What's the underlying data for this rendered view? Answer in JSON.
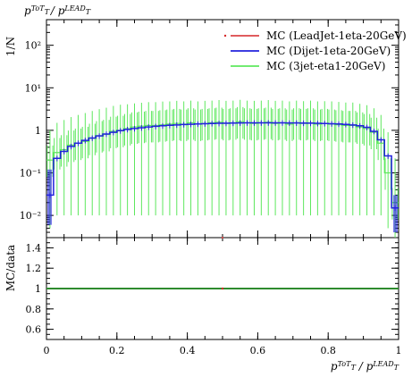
{
  "chart_data": {
    "title": "p_T^ToT / p_T^LEAD",
    "xlabel": "p_T^ToT / p_T^LEAD",
    "ylabel_main": "1/N",
    "ylabel_ratio": "MC/data",
    "xlim": [
      0,
      1
    ],
    "x_ticks": [
      "0",
      "0.2",
      "0.4",
      "0.6",
      "0.8",
      "1"
    ],
    "x_tick_values": [
      0,
      0.2,
      0.4,
      0.6,
      0.8,
      1.0
    ],
    "main_panel": {
      "type": "line",
      "y_scale": "log",
      "ylim": [
        0.003,
        400
      ],
      "y_ticks": [
        {
          "value": 100,
          "label": "10²"
        },
        {
          "value": 10,
          "label": "10¹"
        },
        {
          "value": 1,
          "label": "1"
        },
        {
          "value": 0.1,
          "label": "10⁻¹"
        },
        {
          "value": 0.01,
          "label": "10⁻²"
        }
      ],
      "series": [
        {
          "name": "MC (LeadJet-1eta-20GeV)",
          "color": "#d62728",
          "style": "marker",
          "x": [
            0.5
          ],
          "y": [
            0.0
          ]
        },
        {
          "name": "MC (Dijet-1eta-20GeV)",
          "color": "#2222dd",
          "style": "histogram",
          "x": [
            0.01,
            0.03,
            0.05,
            0.07,
            0.09,
            0.11,
            0.13,
            0.15,
            0.17,
            0.19,
            0.21,
            0.23,
            0.25,
            0.27,
            0.29,
            0.31,
            0.33,
            0.35,
            0.37,
            0.39,
            0.41,
            0.43,
            0.45,
            0.47,
            0.49,
            0.51,
            0.53,
            0.55,
            0.57,
            0.59,
            0.61,
            0.63,
            0.65,
            0.67,
            0.69,
            0.71,
            0.73,
            0.75,
            0.77,
            0.79,
            0.81,
            0.83,
            0.85,
            0.87,
            0.89,
            0.91,
            0.93,
            0.95,
            0.97,
            0.99
          ],
          "y": [
            0.03,
            0.22,
            0.32,
            0.42,
            0.5,
            0.58,
            0.66,
            0.74,
            0.82,
            0.9,
            0.98,
            1.05,
            1.1,
            1.15,
            1.2,
            1.24,
            1.28,
            1.31,
            1.34,
            1.37,
            1.39,
            1.41,
            1.43,
            1.45,
            1.46,
            1.47,
            1.48,
            1.49,
            1.5,
            1.5,
            1.5,
            1.5,
            1.5,
            1.5,
            1.49,
            1.49,
            1.48,
            1.47,
            1.46,
            1.45,
            1.43,
            1.41,
            1.38,
            1.34,
            1.28,
            1.18,
            0.95,
            0.6,
            0.25,
            0.015
          ]
        },
        {
          "name": "MC (3jet-eta1-20GeV)",
          "color": "#5ee85e",
          "style": "histogram",
          "x": [
            0.01,
            0.03,
            0.05,
            0.07,
            0.09,
            0.11,
            0.13,
            0.15,
            0.17,
            0.19,
            0.21,
            0.23,
            0.25,
            0.27,
            0.29,
            0.31,
            0.33,
            0.35,
            0.37,
            0.39,
            0.41,
            0.43,
            0.45,
            0.47,
            0.49,
            0.51,
            0.53,
            0.55,
            0.57,
            0.59,
            0.61,
            0.63,
            0.65,
            0.67,
            0.69,
            0.71,
            0.73,
            0.75,
            0.77,
            0.79,
            0.81,
            0.83,
            0.85,
            0.87,
            0.89,
            0.91,
            0.93,
            0.95,
            0.97,
            0.99
          ],
          "y": [
            0.2,
            0.3,
            0.35,
            0.45,
            0.5,
            0.55,
            0.65,
            0.75,
            0.8,
            0.95,
            1.0,
            1.1,
            1.2,
            1.25,
            1.3,
            1.3,
            1.35,
            1.4,
            1.45,
            1.4,
            1.5,
            1.4,
            1.45,
            1.5,
            1.55,
            1.45,
            1.5,
            1.6,
            1.5,
            1.45,
            1.5,
            1.55,
            1.45,
            1.5,
            1.4,
            1.5,
            1.45,
            1.5,
            1.4,
            1.45,
            1.4,
            1.35,
            1.3,
            1.3,
            1.2,
            1.1,
            0.9,
            0.5,
            0.1,
            0.02
          ],
          "y_err_low": [
            0.195,
            0.29,
            0.34,
            0.44,
            0.49,
            0.54,
            0.64,
            0.74,
            0.79,
            0.94,
            0.99,
            1.09,
            1.19,
            1.24,
            1.29,
            1.29,
            1.34,
            1.39,
            1.44,
            1.39,
            1.49,
            1.39,
            1.44,
            1.49,
            1.54,
            1.44,
            1.49,
            1.59,
            1.49,
            1.44,
            1.49,
            1.54,
            1.44,
            1.49,
            1.39,
            1.49,
            1.44,
            1.49,
            1.39,
            1.44,
            1.39,
            1.34,
            1.29,
            1.29,
            1.19,
            1.09,
            0.89,
            0.49,
            0.095,
            0.018
          ],
          "y_err_high": [
            0.8,
            1.2,
            1.4,
            1.6,
            1.8,
            2.0,
            2.2,
            2.4,
            2.6,
            2.8,
            3.0,
            3.0,
            3.1,
            3.2,
            3.3,
            3.3,
            3.4,
            3.4,
            3.5,
            3.4,
            3.5,
            3.4,
            3.5,
            3.5,
            3.6,
            3.5,
            3.5,
            3.6,
            3.5,
            3.5,
            3.5,
            3.6,
            3.5,
            3.5,
            3.4,
            3.5,
            3.4,
            3.5,
            3.4,
            3.4,
            3.4,
            3.3,
            3.2,
            3.2,
            3.0,
            2.8,
            2.4,
            1.8,
            0.8,
            0.2
          ]
        }
      ]
    },
    "ratio_panel": {
      "type": "line",
      "ylim": [
        0.5,
        1.5
      ],
      "y_ticks": [
        1.4,
        1.2,
        1.0,
        0.8,
        0.6
      ],
      "reference_line": 1.0,
      "series_color": "#2e8b2e"
    },
    "legend": {
      "placement": "top-right"
    }
  }
}
